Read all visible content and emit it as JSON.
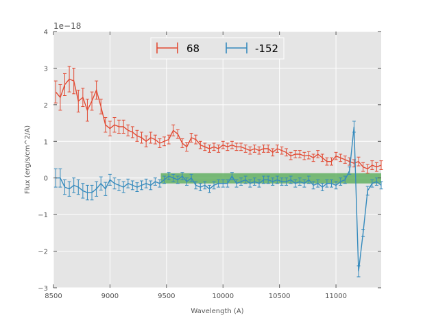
{
  "chart_data": {
    "type": "line",
    "title": "",
    "xlabel": "Wavelength (A)",
    "ylabel": "Flux (erg/s/cm^2/A)",
    "y_offset_label": "1e−18",
    "xlim": [
      8500,
      11400
    ],
    "ylim": [
      -3,
      4
    ],
    "xticks": [
      8500,
      9000,
      9500,
      10000,
      10500,
      11000
    ],
    "yticks": [
      -3,
      -2,
      -1,
      0,
      1,
      2,
      3,
      4
    ],
    "grid": true,
    "legend_position": "top-center",
    "colors": {
      "axes_bg": "#e5e5e5",
      "grid": "#ffffff",
      "band": "#5aac5a"
    },
    "band": {
      "x": [
        9450,
        11400
      ],
      "y": [
        -0.15,
        0.13
      ]
    },
    "series": [
      {
        "name": "68",
        "color": "#e24a33",
        "x": [
          8520,
          8560,
          8600,
          8640,
          8680,
          8720,
          8760,
          8800,
          8840,
          8880,
          8920,
          8960,
          9000,
          9040,
          9080,
          9120,
          9160,
          9200,
          9240,
          9280,
          9320,
          9360,
          9400,
          9440,
          9480,
          9520,
          9560,
          9600,
          9640,
          9680,
          9720,
          9760,
          9800,
          9840,
          9880,
          9920,
          9960,
          10000,
          10040,
          10080,
          10120,
          10160,
          10200,
          10240,
          10280,
          10320,
          10360,
          10400,
          10440,
          10480,
          10520,
          10560,
          10600,
          10640,
          10680,
          10720,
          10760,
          10800,
          10840,
          10880,
          10920,
          10960,
          11000,
          11040,
          11080,
          11120,
          11160,
          11200,
          11240,
          11280,
          11320,
          11360,
          11400
        ],
        "y": [
          2.35,
          2.2,
          2.55,
          2.7,
          2.65,
          2.1,
          2.2,
          1.85,
          2.1,
          2.4,
          1.95,
          1.45,
          1.35,
          1.45,
          1.4,
          1.4,
          1.3,
          1.25,
          1.15,
          1.1,
          1.0,
          1.1,
          1.05,
          0.95,
          1.0,
          1.05,
          1.3,
          1.2,
          0.95,
          0.85,
          1.1,
          1.05,
          0.9,
          0.85,
          0.8,
          0.85,
          0.8,
          0.9,
          0.85,
          0.9,
          0.85,
          0.85,
          0.8,
          0.75,
          0.8,
          0.75,
          0.8,
          0.8,
          0.7,
          0.8,
          0.75,
          0.7,
          0.6,
          0.65,
          0.65,
          0.6,
          0.62,
          0.55,
          0.65,
          0.55,
          0.45,
          0.45,
          0.6,
          0.55,
          0.5,
          0.45,
          0.4,
          0.45,
          0.3,
          0.25,
          0.35,
          0.3,
          0.35
        ],
        "err": [
          0.3,
          0.35,
          0.3,
          0.35,
          0.35,
          0.3,
          0.25,
          0.3,
          0.25,
          0.25,
          0.2,
          0.2,
          0.2,
          0.2,
          0.18,
          0.18,
          0.15,
          0.15,
          0.15,
          0.15,
          0.15,
          0.15,
          0.12,
          0.12,
          0.12,
          0.12,
          0.15,
          0.12,
          0.12,
          0.12,
          0.12,
          0.12,
          0.1,
          0.1,
          0.1,
          0.1,
          0.1,
          0.1,
          0.1,
          0.1,
          0.1,
          0.1,
          0.1,
          0.1,
          0.1,
          0.1,
          0.1,
          0.1,
          0.1,
          0.1,
          0.1,
          0.1,
          0.1,
          0.1,
          0.1,
          0.1,
          0.1,
          0.1,
          0.1,
          0.1,
          0.1,
          0.1,
          0.1,
          0.1,
          0.1,
          0.1,
          0.1,
          0.12,
          0.12,
          0.12,
          0.12,
          0.12,
          0.12
        ]
      },
      {
        "name": "-152",
        "color": "#348abd",
        "x": [
          8520,
          8560,
          8600,
          8640,
          8680,
          8720,
          8760,
          8800,
          8840,
          8880,
          8920,
          8960,
          9000,
          9040,
          9080,
          9120,
          9160,
          9200,
          9240,
          9280,
          9320,
          9360,
          9400,
          9440,
          9480,
          9520,
          9560,
          9600,
          9640,
          9680,
          9720,
          9760,
          9800,
          9840,
          9880,
          9920,
          9960,
          10000,
          10040,
          10080,
          10120,
          10160,
          10200,
          10240,
          10280,
          10320,
          10360,
          10400,
          10440,
          10480,
          10520,
          10560,
          10600,
          10640,
          10680,
          10720,
          10760,
          10800,
          10840,
          10880,
          10920,
          10960,
          11000,
          11040,
          11080,
          11120,
          11160,
          11200,
          11240,
          11280,
          11320,
          11360,
          11400
        ],
        "y": [
          0.0,
          0.0,
          -0.25,
          -0.3,
          -0.2,
          -0.25,
          -0.35,
          -0.4,
          -0.4,
          -0.3,
          -0.15,
          -0.3,
          -0.05,
          -0.15,
          -0.2,
          -0.25,
          -0.15,
          -0.2,
          -0.25,
          -0.2,
          -0.15,
          -0.2,
          -0.1,
          -0.15,
          -0.05,
          0.05,
          0.0,
          -0.05,
          0.05,
          -0.1,
          0.0,
          -0.2,
          -0.25,
          -0.2,
          -0.3,
          -0.2,
          -0.15,
          -0.15,
          -0.15,
          0.05,
          -0.15,
          -0.1,
          -0.05,
          -0.15,
          -0.1,
          -0.15,
          -0.05,
          -0.05,
          -0.1,
          -0.05,
          -0.1,
          -0.1,
          -0.05,
          -0.15,
          -0.1,
          -0.15,
          -0.05,
          -0.2,
          -0.15,
          -0.25,
          -0.15,
          -0.15,
          -0.2,
          -0.1,
          -0.05,
          0.2,
          1.4,
          -2.55,
          -1.5,
          -0.35,
          -0.15,
          -0.1,
          -0.2
        ],
        "err": [
          0.25,
          0.25,
          0.2,
          0.2,
          0.2,
          0.2,
          0.2,
          0.2,
          0.2,
          0.2,
          0.18,
          0.18,
          0.15,
          0.15,
          0.15,
          0.15,
          0.12,
          0.12,
          0.12,
          0.12,
          0.12,
          0.12,
          0.1,
          0.1,
          0.1,
          0.1,
          0.1,
          0.1,
          0.1,
          0.1,
          0.1,
          0.1,
          0.1,
          0.1,
          0.1,
          0.1,
          0.1,
          0.1,
          0.1,
          0.1,
          0.1,
          0.1,
          0.1,
          0.1,
          0.1,
          0.1,
          0.1,
          0.1,
          0.1,
          0.1,
          0.1,
          0.1,
          0.1,
          0.1,
          0.1,
          0.1,
          0.1,
          0.1,
          0.1,
          0.1,
          0.1,
          0.1,
          0.1,
          0.1,
          0.1,
          0.1,
          0.15,
          0.15,
          0.1,
          0.12,
          0.1,
          0.1,
          0.1
        ]
      }
    ]
  }
}
